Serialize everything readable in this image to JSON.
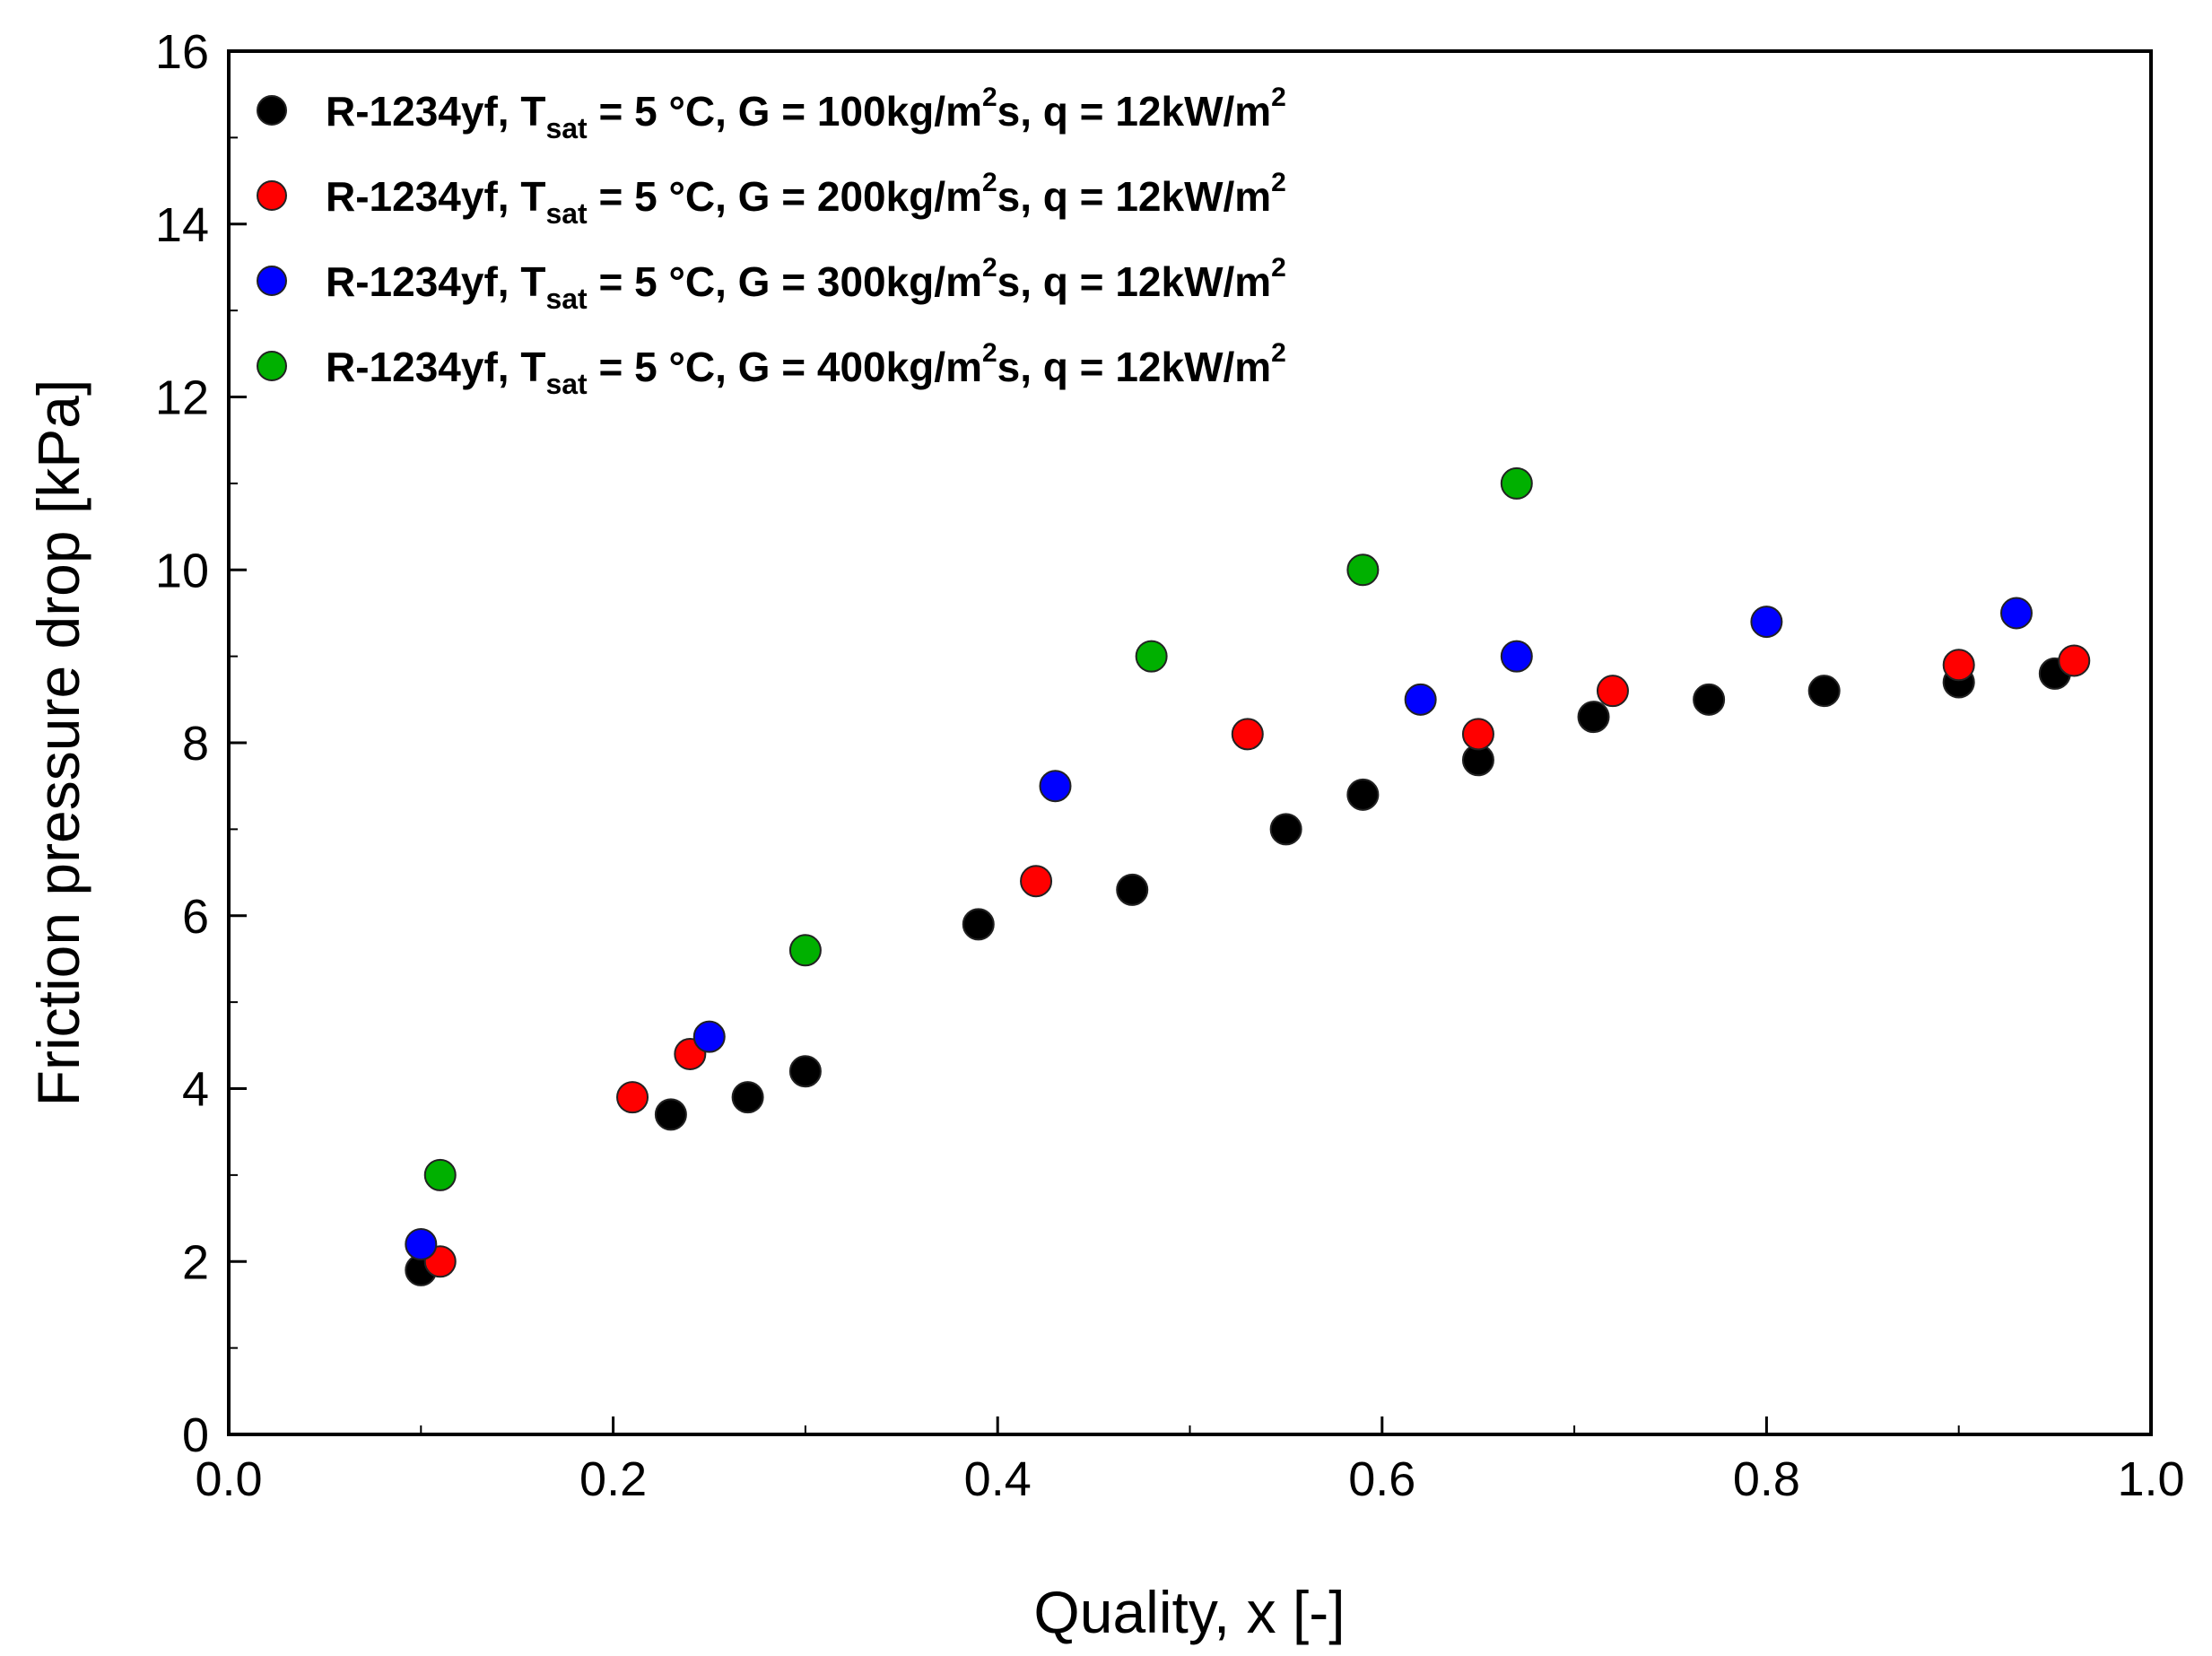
{
  "chart_data": {
    "type": "scatter",
    "title": "",
    "xlabel": "Quality, x [-]",
    "ylabel": "Friction pressure drop [kPa]",
    "xlim": [
      0.0,
      1.0
    ],
    "ylim": [
      0,
      16
    ],
    "x_ticks": [
      0.0,
      0.2,
      0.4,
      0.6,
      0.8,
      1.0
    ],
    "x_tick_labels": [
      "0.0",
      "0.2",
      "0.4",
      "0.6",
      "0.8",
      "1.0"
    ],
    "y_ticks": [
      0,
      2,
      4,
      6,
      8,
      10,
      12,
      14,
      16
    ],
    "y_tick_labels": [
      "0",
      "2",
      "4",
      "6",
      "8",
      "10",
      "12",
      "14",
      "16"
    ],
    "grid": false,
    "legend_position": "top-left",
    "series": [
      {
        "name": "R-1234yf, Tsat = 5 °C, G = 100kg/m2s, q = 12kW/m2",
        "legend": {
          "pre": "R-1234yf, T",
          "sub": "sat",
          "mid": " = 5 °C, G = 100kg/m",
          "sup1": "2",
          "post": "s, q = 12kW/m",
          "sup2": "2"
        },
        "color": "#000000",
        "x": [
          0.1,
          0.23,
          0.27,
          0.3,
          0.39,
          0.47,
          0.55,
          0.59,
          0.65,
          0.71,
          0.77,
          0.83,
          0.9,
          0.95
        ],
        "y": [
          1.9,
          3.7,
          3.9,
          4.2,
          5.9,
          6.3,
          7.0,
          7.4,
          7.8,
          8.3,
          8.5,
          8.6,
          8.7,
          8.8
        ]
      },
      {
        "name": "R-1234yf, Tsat = 5 °C, G = 200kg/m2s, q = 12kW/m2",
        "legend": {
          "pre": "R-1234yf, T",
          "sub": "sat",
          "mid": " = 5 °C, G = 200kg/m",
          "sup1": "2",
          "post": "s, q = 12kW/m",
          "sup2": "2"
        },
        "color": "#ff0000",
        "x": [
          0.11,
          0.21,
          0.24,
          0.42,
          0.53,
          0.65,
          0.72,
          0.9,
          0.96
        ],
        "y": [
          2.0,
          3.9,
          4.4,
          6.4,
          8.1,
          8.1,
          8.6,
          8.9,
          8.95
        ]
      },
      {
        "name": "R-1234yf, Tsat = 5 °C, G = 300kg/m2s, q = 12kW/m2",
        "legend": {
          "pre": "R-1234yf, T",
          "sub": "sat",
          "mid": " = 5 °C, G = 300kg/m",
          "sup1": "2",
          "post": "s, q = 12kW/m",
          "sup2": "2"
        },
        "color": "#0000ff",
        "x": [
          0.1,
          0.25,
          0.43,
          0.62,
          0.67,
          0.8,
          0.93
        ],
        "y": [
          2.2,
          4.6,
          7.5,
          8.5,
          9.0,
          9.4,
          9.5
        ]
      },
      {
        "name": "R-1234yf, Tsat = 5 °C, G = 400kg/m2s, q = 12kW/m2",
        "legend": {
          "pre": "R-1234yf, T",
          "sub": "sat",
          "mid": " = 5 °C, G = 400kg/m",
          "sup1": "2",
          "post": "s, q = 12kW/m",
          "sup2": "2"
        },
        "color": "#00b000",
        "x": [
          0.11,
          0.3,
          0.48,
          0.59,
          0.67
        ],
        "y": [
          3.0,
          5.6,
          9.0,
          10.0,
          11.0
        ]
      }
    ]
  }
}
